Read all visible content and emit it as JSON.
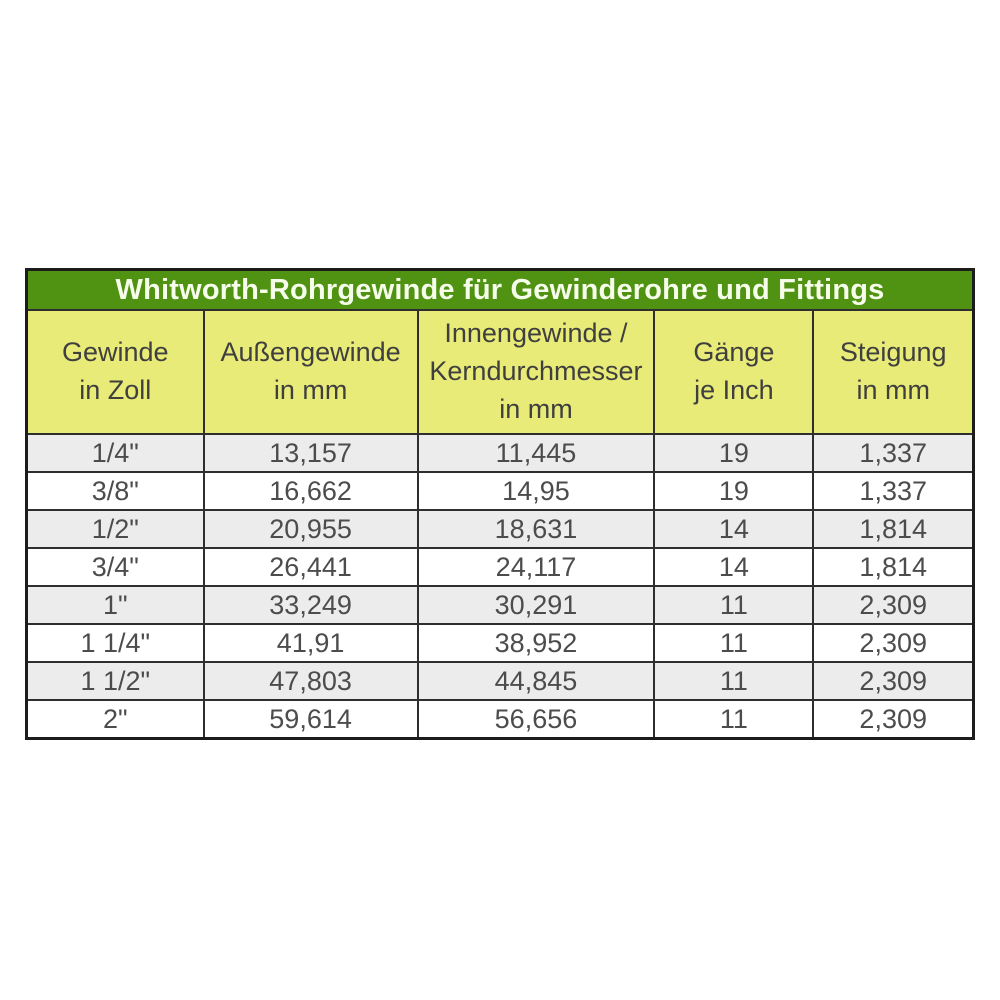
{
  "colors": {
    "title_bg": "#509212",
    "title_text": "#f6fdea",
    "header_bg": "#e8eb77",
    "header_text": "#3f3f3f",
    "row_bg": "#ffffff",
    "row_alt_bg": "#ececec",
    "cell_text": "#4c4c4c",
    "border_outer": "#1c1c1c",
    "border_inner": "#2e2e2e"
  },
  "chart_data": {
    "type": "table",
    "title": "Whitworth-Rohrgewinde für Gewinderohre und Fittings",
    "columns": [
      "Gewinde in Zoll",
      "Außengewinde in mm",
      "Innengewinde / Kerndurchmesser in mm",
      "Gänge je Inch",
      "Steigung in mm"
    ],
    "header_display": [
      "Gewinde\nin Zoll",
      "Außengewinde\nin mm",
      "Innengewinde /\nKerndurchmesser\nin mm",
      "Gänge\nje Inch",
      "Steigung\nin mm"
    ],
    "rows": [
      [
        "1/4\"",
        "13,157",
        "11,445",
        "19",
        "1,337"
      ],
      [
        "3/8\"",
        "16,662",
        "14,95",
        "19",
        "1,337"
      ],
      [
        "1/2\"",
        "20,955",
        "18,631",
        "14",
        "1,814"
      ],
      [
        "3/4\"",
        "26,441",
        "24,117",
        "14",
        "1,814"
      ],
      [
        "1\"",
        "33,249",
        "30,291",
        "11",
        "2,309"
      ],
      [
        "1 1/4\"",
        "41,91",
        "38,952",
        "11",
        "2,309"
      ],
      [
        "1 1/2\"",
        "47,803",
        "44,845",
        "11",
        "2,309"
      ],
      [
        "2\"",
        "59,614",
        "56,656",
        "11",
        "2,309"
      ]
    ]
  }
}
